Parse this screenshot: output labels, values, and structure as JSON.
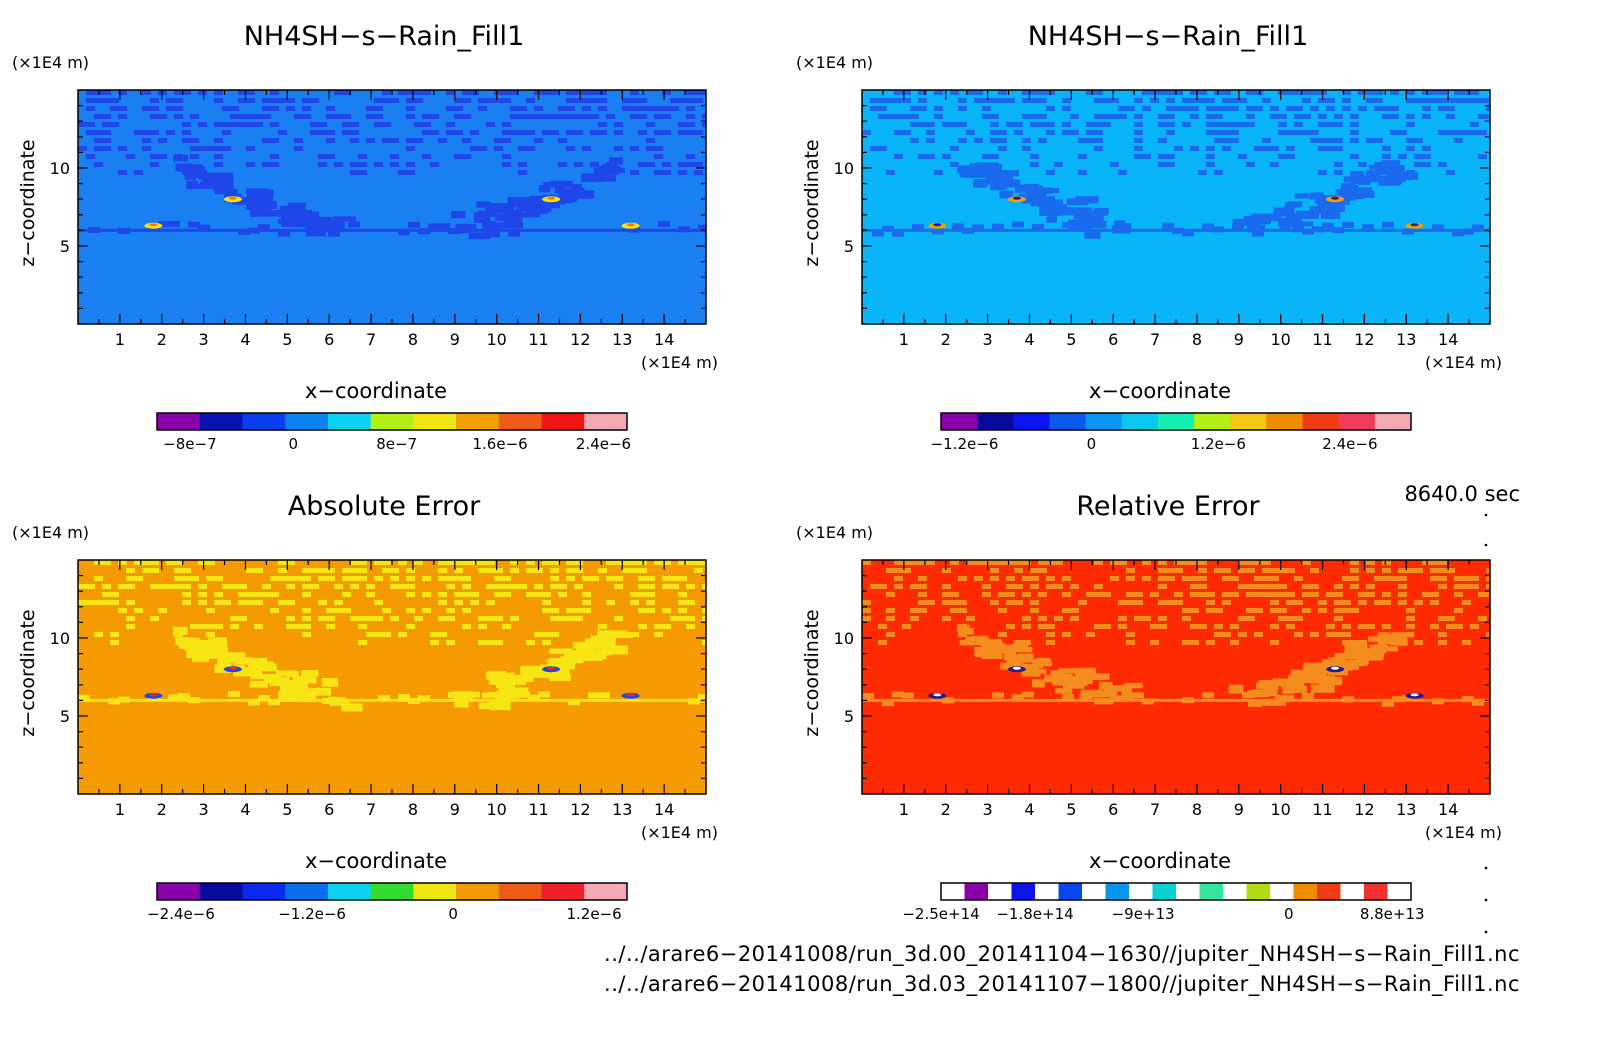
{
  "chart_data": [
    {
      "type": "heatmap",
      "title": "NH4SH−s−Rain_Fill1",
      "xlabel": "x−coordinate",
      "ylabel": "z−coordinate",
      "x_unit": "(×1E4 m)",
      "y_unit": "(×1E4 m)",
      "xlim": [
        0,
        15
      ],
      "ylim": [
        0,
        15
      ],
      "x_ticks": [
        "1",
        "2",
        "3",
        "4",
        "5",
        "6",
        "7",
        "8",
        "9",
        "10",
        "11",
        "12",
        "13",
        "14"
      ],
      "y_ticks": [
        "5",
        "10"
      ],
      "colorbar": {
        "colors": [
          "#8a00aa",
          "#0a14b4",
          "#0a3cf0",
          "#0a82f0",
          "#0ad2f0",
          "#b4f014",
          "#f0e614",
          "#f0a000",
          "#f05a14",
          "#f01414",
          "#f4aab4"
        ],
        "tick_labels": [
          "−8e−7",
          "0",
          "8e−7",
          "1.6e−6",
          "2.4e−6"
        ]
      },
      "field": {
        "base": "#1a80f2",
        "band": "#1e46e8",
        "hot": [
          "#f0e614",
          "#ff7800"
        ]
      }
    },
    {
      "type": "heatmap",
      "title": "NH4SH−s−Rain_Fill1",
      "xlabel": "x−coordinate",
      "ylabel": "z−coordinate",
      "x_unit": "(×1E4 m)",
      "y_unit": "(×1E4 m)",
      "xlim": [
        0,
        15
      ],
      "ylim": [
        0,
        15
      ],
      "x_ticks": [
        "1",
        "2",
        "3",
        "4",
        "5",
        "6",
        "7",
        "8",
        "9",
        "10",
        "11",
        "12",
        "13",
        "14"
      ],
      "y_ticks": [
        "5",
        "10"
      ],
      "colorbar": {
        "colors": [
          "#8a00aa",
          "#0a0a9a",
          "#0a14f0",
          "#0a5af0",
          "#0a96f0",
          "#0ac8f0",
          "#14f0b4",
          "#b4f014",
          "#f0c814",
          "#f08c00",
          "#f03c14",
          "#f03c5a",
          "#f4aab4"
        ],
        "tick_labels": [
          "−1.2e−6",
          "0",
          "1.2e−6",
          "2.4e−6"
        ]
      },
      "field": {
        "base": "#0ab4f8",
        "band": "#1a6af0",
        "hot": [
          "#f0a000",
          "#1e1e9a"
        ]
      }
    },
    {
      "type": "heatmap",
      "title": "Absolute Error",
      "xlabel": "x−coordinate",
      "ylabel": "z−coordinate",
      "x_unit": "(×1E4 m)",
      "y_unit": "(×1E4 m)",
      "xlim": [
        0,
        15
      ],
      "ylim": [
        0,
        15
      ],
      "x_ticks": [
        "1",
        "2",
        "3",
        "4",
        "5",
        "6",
        "7",
        "8",
        "9",
        "10",
        "11",
        "12",
        "13",
        "14"
      ],
      "y_ticks": [
        "5",
        "10"
      ],
      "colorbar": {
        "colors": [
          "#8a00aa",
          "#0a0aa0",
          "#0a28f0",
          "#0a6ef0",
          "#0ad2f0",
          "#32dc32",
          "#f0e614",
          "#f09a00",
          "#f05a14",
          "#f01e28",
          "#f4aab4"
        ],
        "tick_labels": [
          "−2.4e−6",
          "−1.2e−6",
          "0",
          "1.2e−6"
        ]
      },
      "field": {
        "base": "#f59a00",
        "band": "#f8e614",
        "hot": [
          "#1e46e8",
          "#ff2020"
        ]
      }
    },
    {
      "type": "heatmap",
      "title": "Relative Error",
      "xlabel": "x−coordinate",
      "ylabel": "z−coordinate",
      "x_unit": "(×1E4 m)",
      "y_unit": "(×1E4 m)",
      "xlim": [
        0,
        15
      ],
      "ylim": [
        0,
        15
      ],
      "x_ticks": [
        "1",
        "2",
        "3",
        "4",
        "5",
        "6",
        "7",
        "8",
        "9",
        "10",
        "11",
        "12",
        "13",
        "14"
      ],
      "y_ticks": [
        "5",
        "10"
      ],
      "colorbar": {
        "colors": [
          "#ffffff",
          "#8a00aa",
          "#ffffff",
          "#0a14f0",
          "#ffffff",
          "#0a46f0",
          "#ffffff",
          "#0a96f0",
          "#ffffff",
          "#0ad2d2",
          "#ffffff",
          "#32e6a0",
          "#ffffff",
          "#b4dc14",
          "#ffffff",
          "#f08c00",
          "#f03c14",
          "#ffffff",
          "#f03232",
          "#ffffff"
        ],
        "tick_labels": [
          "−2.5e+14",
          "−1.8e+14",
          "−9e+13",
          "0",
          "8.8e+13"
        ]
      },
      "field": {
        "base": "#ff2a00",
        "band": "#f58c1e",
        "hot": [
          "#1e1e9a",
          "#ffffff"
        ]
      }
    }
  ],
  "time_label": "8640.0 sec",
  "footer": [
    "../../arare6−20141008/run_3d.00_20141104−1630//jupiter_NH4SH−s−Rain_Fill1.nc",
    "../../arare6−20141008/run_3d.03_20141107−1800//jupiter_NH4SH−s−Rain_Fill1.nc"
  ]
}
